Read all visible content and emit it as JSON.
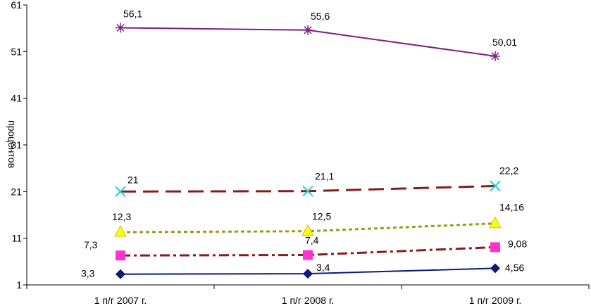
{
  "chart_data": {
    "type": "line",
    "title": "",
    "xlabel": "",
    "ylabel": "процентов",
    "ylim": [
      1,
      61
    ],
    "yticks": [
      1,
      11,
      21,
      31,
      41,
      51,
      61
    ],
    "categories": [
      "1 п/г 2007 г.",
      "1 п/г 2008 г.",
      "1 п/г 2009 г."
    ],
    "grid": false,
    "legend": "none",
    "series": [
      {
        "values": [
          56.1,
          55.6,
          50.01
        ],
        "labels": [
          "56,1",
          "55,6",
          "50,01"
        ],
        "color": "#7B1F7E",
        "marker": "asterisk",
        "dash": "solid"
      },
      {
        "values": [
          21,
          21.1,
          22.2
        ],
        "labels": [
          "21",
          "21,1",
          "22,2"
        ],
        "color": "#8B1A1A",
        "marker": "x-cyan",
        "dash": "long-dash"
      },
      {
        "values": [
          12.3,
          12.5,
          14.16
        ],
        "labels": [
          "12,3",
          "12,5",
          "14,16"
        ],
        "color": "#9C9C14",
        "marker": "triangle-yellow",
        "dash": "dotted"
      },
      {
        "values": [
          7.3,
          7.4,
          9.08
        ],
        "labels": [
          "7,3",
          "7,4",
          "9,08"
        ],
        "color": "#8B1A1A",
        "marker": "square-magenta",
        "dash": "dash-dot"
      },
      {
        "values": [
          3.3,
          3.4,
          4.56
        ],
        "labels": [
          "3,3",
          "3,4",
          "4,56"
        ],
        "color": "#0A1A7A",
        "marker": "diamond-navy",
        "dash": "solid"
      }
    ]
  }
}
